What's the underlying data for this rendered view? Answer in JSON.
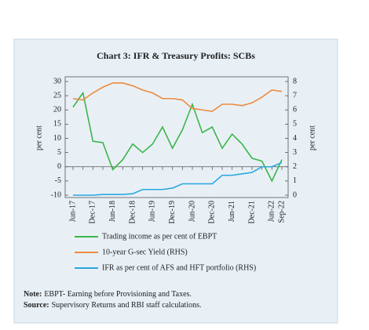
{
  "chart_data": {
    "type": "line",
    "title": "Chart 3: IFR & Treasury Profits: SCBs",
    "y_label": "per cent",
    "y2_label": "per cent",
    "categories": [
      "Jun-17",
      null,
      "Dec-17",
      null,
      "Jun-18",
      null,
      "Dec-18",
      null,
      "Jun-19",
      null,
      "Dec-19",
      null,
      "Jun-20",
      null,
      "Dec-20",
      null,
      "Jun-21",
      null,
      "Dec-21",
      null,
      "Jun-22",
      "Sep-22"
    ],
    "ylim": [
      -10,
      30
    ],
    "yticks": [
      -10,
      -5,
      0,
      5,
      10,
      15,
      20,
      25,
      30
    ],
    "y2lim": [
      0,
      8
    ],
    "y2ticks": [
      0,
      1,
      2,
      3,
      4,
      5,
      6,
      7,
      8
    ],
    "series": [
      {
        "name": "Trading income as per cent of EBPT",
        "color": "#3db54a",
        "values": [
          21,
          26,
          9,
          8.5,
          -1,
          2.5,
          8,
          5,
          8,
          14,
          6.5,
          13,
          22,
          12,
          14,
          6.5,
          11.5,
          8,
          3,
          2,
          -5,
          2.5
        ]
      },
      {
        "name": "10-year G-sec Yield (RHS)",
        "color": "#f08a3c",
        "axis": "y2",
        "values": [
          6.8,
          6.7,
          7.2,
          7.6,
          7.9,
          7.9,
          7.7,
          7.4,
          7.2,
          6.8,
          6.8,
          6.7,
          6.1,
          6.0,
          5.9,
          6.4,
          6.4,
          6.3,
          6.5,
          6.9,
          7.4,
          7.3
        ]
      },
      {
        "name": "IFR as per cent of AFS and HFT portfolio (RHS)",
        "color": "#29a8e0",
        "axis": "y2",
        "values": [
          0.0,
          0.0,
          0.0,
          0.05,
          0.05,
          0.05,
          0.1,
          0.4,
          0.4,
          0.4,
          0.5,
          0.8,
          0.8,
          0.8,
          0.8,
          1.4,
          1.4,
          1.5,
          1.6,
          2.0,
          2.0,
          2.3
        ]
      }
    ]
  },
  "notes": [
    {
      "label": "Note:",
      "text": "EBPT- Earning before Provisioning and Taxes."
    },
    {
      "label": "Source:",
      "text": "Supervisory Returns and RBI staff calculations."
    }
  ]
}
